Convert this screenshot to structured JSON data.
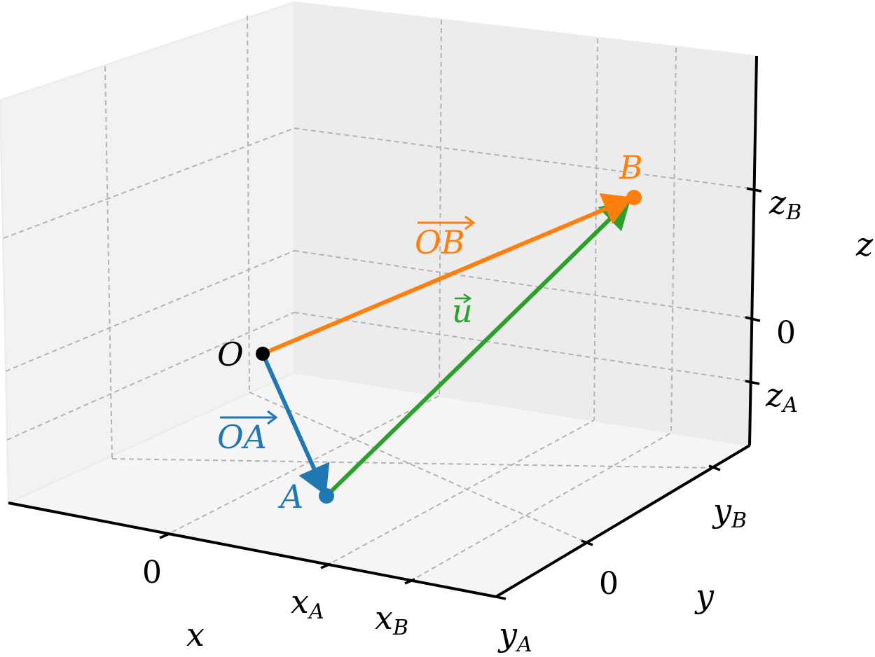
{
  "diagram": {
    "points": {
      "origin": {
        "label": "O"
      },
      "a": {
        "label": "A"
      },
      "b": {
        "label": "B"
      }
    },
    "vectors": {
      "oa": {
        "label": "OA",
        "color": "#1f77b4"
      },
      "ob": {
        "label": "OB",
        "color": "#ff7f0e"
      },
      "u": {
        "label": "u",
        "color": "#2ca02c"
      }
    },
    "axes": {
      "x": {
        "label": "x",
        "ticks": [
          {
            "main": "0",
            "sub": ""
          },
          {
            "main": "x",
            "sub": "A"
          },
          {
            "main": "x",
            "sub": "B"
          }
        ]
      },
      "y": {
        "label": "y",
        "ticks": [
          {
            "main": "y",
            "sub": "A"
          },
          {
            "main": "0",
            "sub": ""
          },
          {
            "main": "y",
            "sub": "B"
          }
        ]
      },
      "z": {
        "label": "z",
        "ticks": [
          {
            "main": "z",
            "sub": "A"
          },
          {
            "main": "0",
            "sub": ""
          },
          {
            "main": "z",
            "sub": "B"
          }
        ]
      }
    },
    "pane_color": "#f2f2f2",
    "grid": true
  }
}
